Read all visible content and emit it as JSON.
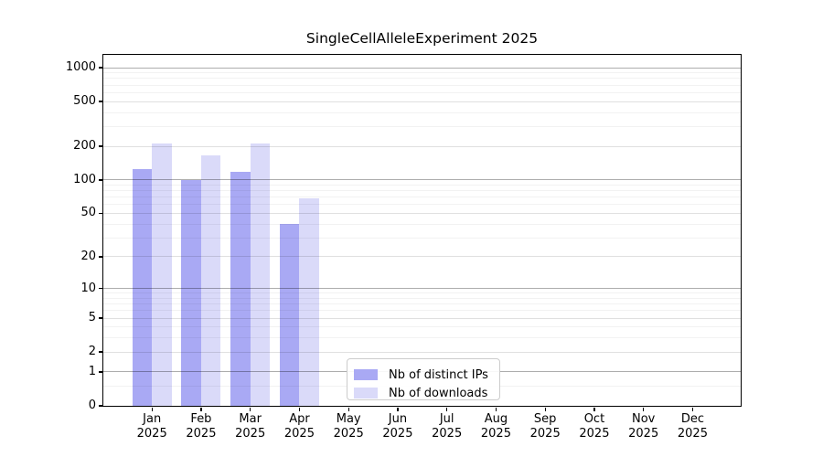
{
  "figure": {
    "background": "#ffffff"
  },
  "chart_data": {
    "type": "bar",
    "title": "SingleCellAlleleExperiment 2025",
    "xlabel": "",
    "ylabel": "",
    "yscale": "log10(value+1)",
    "ylim": [
      0,
      1300
    ],
    "grid": true,
    "categories": [
      "Jan 2025",
      "Feb 2025",
      "Mar 2025",
      "Apr 2025",
      "May 2025",
      "Jun 2025",
      "Jul 2025",
      "Aug 2025",
      "Sep 2025",
      "Oct 2025",
      "Nov 2025",
      "Dec 2025"
    ],
    "series": [
      {
        "name": "Nb of distinct IPs",
        "color": "#a9a9f4",
        "values": [
          124,
          100,
          119,
          40,
          0,
          0,
          0,
          0,
          0,
          0,
          0,
          0
        ]
      },
      {
        "name": "Nb of downloads",
        "color": "#dadaf9",
        "values": [
          210,
          167,
          213,
          68,
          0,
          0,
          0,
          0,
          0,
          0,
          0,
          0
        ]
      }
    ],
    "ytick_values": [
      0,
      1,
      2,
      5,
      10,
      20,
      50,
      100,
      200,
      500,
      1000
    ],
    "ytick_labels": [
      "0",
      "1",
      "2",
      "5",
      "10",
      "20",
      "50",
      "100",
      "200",
      "500",
      "1000"
    ],
    "minor_gridline_values": [
      0.5,
      3,
      4,
      6,
      7,
      8,
      9,
      30,
      40,
      60,
      70,
      80,
      90,
      300,
      400,
      600,
      700,
      800,
      900
    ],
    "legend": {
      "position": "inside-bottom-center",
      "items": [
        "Nb of distinct IPs",
        "Nb of downloads"
      ]
    }
  }
}
